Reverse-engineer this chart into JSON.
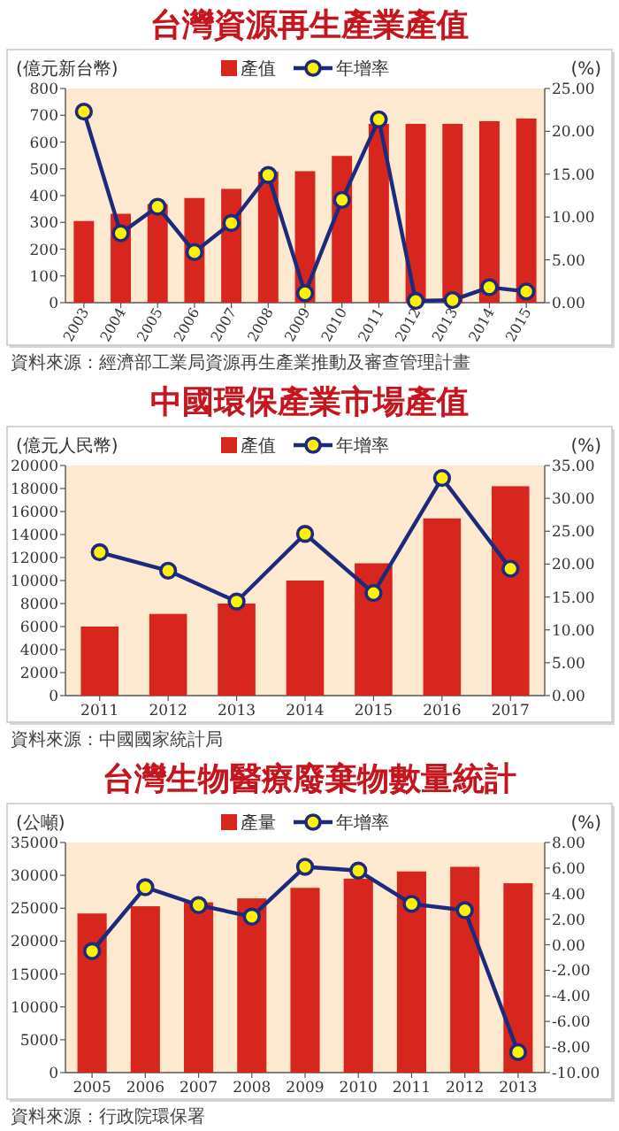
{
  "chart_data": [
    {
      "type": "bar",
      "title": "台灣資源再生產業產值",
      "ylabel": "(億元新台幣)",
      "y2label": "(%)",
      "legend": "top",
      "marker": "circle",
      "categories": [
        "2003",
        "2004",
        "2005",
        "2006",
        "2007",
        "2008",
        "2009",
        "2010",
        "2011",
        "2012",
        "2013",
        "2014",
        "2015"
      ],
      "series": [
        {
          "name": "產值",
          "color": "#d7261e",
          "values": [
            305,
            332,
            368,
            391,
            425,
            489,
            491,
            548,
            668,
            668,
            668,
            678,
            688
          ]
        },
        {
          "name": "年增率",
          "type": "line",
          "axis": "y2",
          "color": "#1c2a7e",
          "values": [
            22.3,
            8.1,
            11.2,
            5.9,
            9.3,
            14.9,
            1.1,
            12.0,
            21.4,
            0.2,
            0.3,
            1.8,
            1.3
          ]
        }
      ],
      "ylim": [
        0,
        800
      ],
      "yticks": [
        0,
        100,
        200,
        300,
        400,
        500,
        600,
        700,
        800
      ],
      "y2lim": [
        0,
        25
      ],
      "y2ticks": [
        {
          "value": 0,
          "label": "0.00"
        },
        {
          "value": 5,
          "label": "5.00"
        },
        {
          "value": 10,
          "label": "10.00"
        },
        {
          "value": 15,
          "label": "15.00"
        },
        {
          "value": 20,
          "label": "20.00"
        },
        {
          "value": 25,
          "label": "25.00"
        }
      ],
      "annotations": [
        "資料來源：經濟部工業局資源再生產業推動及審查管理計畫"
      ]
    },
    {
      "type": "bar",
      "title": "中國環保產業市場產值",
      "ylabel": "(億元人民幣)",
      "y2label": "(%)",
      "legend": "top",
      "marker": "circle",
      "categories": [
        "2011",
        "2012",
        "2013",
        "2014",
        "2015",
        "2016",
        "2017"
      ],
      "series": [
        {
          "name": "產值",
          "color": "#d7261e",
          "values": [
            6000,
            7100,
            8000,
            10000,
            11500,
            15400,
            18200
          ]
        },
        {
          "name": "年增率",
          "type": "line",
          "axis": "y2",
          "color": "#1c2a7e",
          "values": [
            21.8,
            19.0,
            14.3,
            24.6,
            15.6,
            33.1,
            19.3
          ]
        }
      ],
      "ylim": [
        0,
        20000
      ],
      "yticks": [
        0,
        2000,
        4000,
        6000,
        8000,
        10000,
        12000,
        14000,
        16000,
        18000,
        20000
      ],
      "y2lim": [
        0,
        35
      ],
      "y2ticks": [
        {
          "value": 0,
          "label": "0.00"
        },
        {
          "value": 5,
          "label": "5.00"
        },
        {
          "value": 10,
          "label": "10.00"
        },
        {
          "value": 15,
          "label": "15.00"
        },
        {
          "value": 20,
          "label": "20.00"
        },
        {
          "value": 25,
          "label": "25.00"
        },
        {
          "value": 30,
          "label": "30.00"
        },
        {
          "value": 35,
          "label": "35.00"
        }
      ],
      "annotations": [
        "資料來源：中國國家統計局"
      ]
    },
    {
      "type": "bar",
      "title": "台灣生物醫療廢棄物數量統計",
      "ylabel": "(公噸)",
      "y2label": "(%)",
      "legend": "top",
      "marker": "circle",
      "categories": [
        "2005",
        "2006",
        "2007",
        "2008",
        "2009",
        "2010",
        "2011",
        "2012",
        "2013"
      ],
      "series": [
        {
          "name": "產量",
          "color": "#d7261e",
          "values": [
            24200,
            25300,
            25900,
            26500,
            28100,
            29500,
            30600,
            31300,
            28800
          ]
        },
        {
          "name": "年增率",
          "type": "line",
          "axis": "y2",
          "color": "#1c2a7e",
          "values": [
            -0.5,
            4.5,
            3.1,
            2.2,
            6.1,
            5.8,
            3.2,
            2.7,
            -8.4
          ]
        }
      ],
      "ylim": [
        0,
        35000
      ],
      "yticks": [
        0,
        5000,
        10000,
        15000,
        20000,
        25000,
        30000,
        35000
      ],
      "y2lim": [
        -10,
        8
      ],
      "y2ticks": [
        {
          "value": -10,
          "label": "-10.00"
        },
        {
          "value": -8,
          "label": "-8.00"
        },
        {
          "value": -6,
          "label": "-6.00"
        },
        {
          "value": -4,
          "label": "-4.00"
        },
        {
          "value": -2,
          "label": "-2.00"
        },
        {
          "value": 0,
          "label": "0.00"
        },
        {
          "value": 2,
          "label": "2.00"
        },
        {
          "value": 4,
          "label": "4.00"
        },
        {
          "value": 6,
          "label": "6.00"
        },
        {
          "value": 8,
          "label": "8.00"
        }
      ],
      "annotations": [
        "資料來源：行政院環保署"
      ]
    }
  ]
}
